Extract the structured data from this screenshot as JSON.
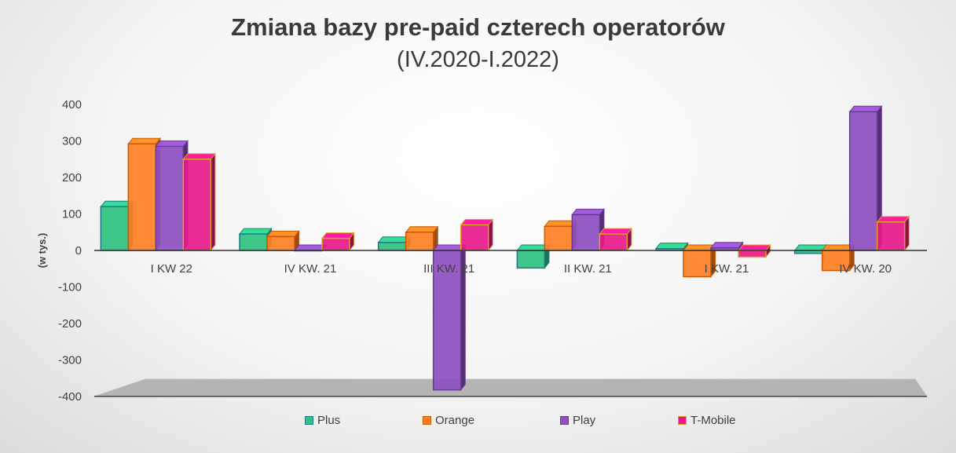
{
  "chart_data": {
    "type": "bar",
    "title": "Zmiana bazy pre-paid czterech operatorów",
    "subtitle": "(IV.2020-I.2022)",
    "ylabel": "(w tys.)",
    "xlabel": "",
    "ylim": [
      -400,
      400
    ],
    "yticks": [
      "400",
      "300",
      "200",
      "100",
      "0",
      "-100",
      "-200",
      "-300",
      "-400"
    ],
    "categories": [
      "I KW 22",
      "IV KW. 21",
      "III KW. 21",
      "II KW. 21",
      "I KW. 21",
      "IV KW. 20"
    ],
    "series": [
      {
        "name": "Plus",
        "color": "#2ec27e",
        "border": "#1f7a8c",
        "values": [
          120,
          45,
          22,
          -48,
          5,
          -8
        ]
      },
      {
        "name": "Orange",
        "color": "#ff7f24",
        "border": "#c85a00",
        "values": [
          292,
          38,
          50,
          66,
          -72,
          -55
        ]
      },
      {
        "name": "Play",
        "color": "#8e4fc2",
        "border": "#6a3a94",
        "values": [
          285,
          0,
          -382,
          98,
          7,
          380
        ]
      },
      {
        "name": "T-Mobile",
        "color": "#e6198c",
        "border": "#e0a020",
        "values": [
          250,
          33,
          70,
          45,
          -18,
          78
        ]
      }
    ],
    "legend_position": "bottom",
    "grid": false
  }
}
